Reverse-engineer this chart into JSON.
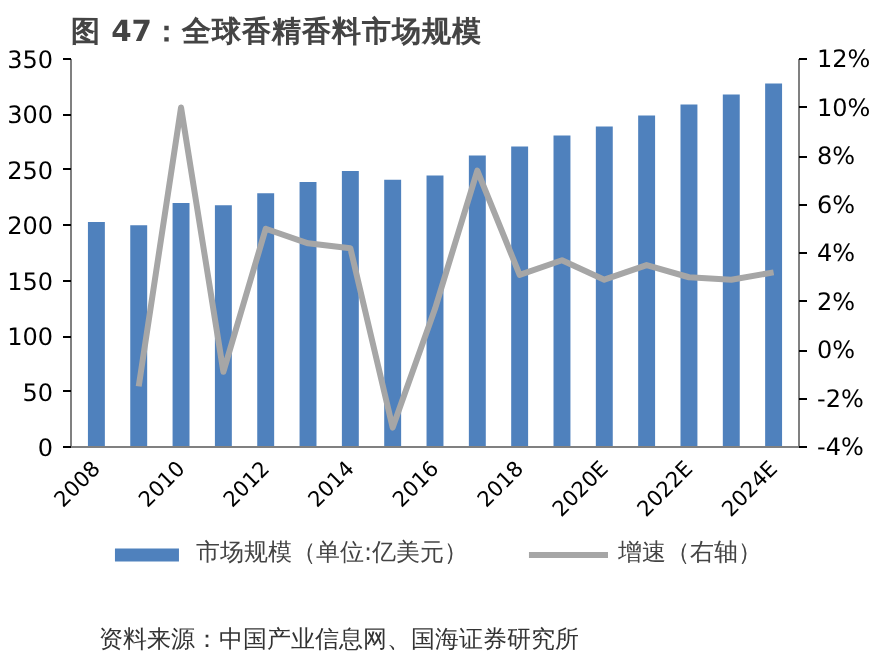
{
  "chart_data": {
    "type": "bar",
    "title": "图 47：全球香精香料市场规模",
    "categories": [
      "2008",
      null,
      "2010",
      null,
      "2012",
      null,
      "2014",
      null,
      "2016",
      null,
      "2018",
      null,
      "2020E",
      null,
      "2022E",
      null,
      "2024E"
    ],
    "series": [
      {
        "name": "市场规模（单位:亿美元）",
        "color": "#4f81bd",
        "values": [
          203,
          200,
          220,
          218,
          229,
          239,
          249,
          241,
          245,
          263,
          271,
          281,
          289,
          299,
          309,
          318,
          328
        ]
      },
      {
        "name": "增速（右轴）",
        "type": "line",
        "axis": "y2",
        "color": "#a6a6a6",
        "values": [
          null,
          -1.5,
          10.0,
          -0.9,
          5.0,
          4.4,
          4.2,
          -3.2,
          1.7,
          7.4,
          3.1,
          3.7,
          2.9,
          3.5,
          3.0,
          2.9,
          3.2
        ]
      }
    ],
    "ylim": [
      0,
      350
    ],
    "yticks": [
      0,
      50,
      100,
      150,
      200,
      250,
      300,
      350
    ],
    "y2lim": [
      -4,
      12
    ],
    "y2ticks": [
      {
        "value": -4,
        "label": "-4%"
      },
      {
        "value": -2,
        "label": "-2%"
      },
      {
        "value": 0,
        "label": "0%"
      },
      {
        "value": 2,
        "label": "2%"
      },
      {
        "value": 4,
        "label": "4%"
      },
      {
        "value": 6,
        "label": "6%"
      },
      {
        "value": 8,
        "label": "8%"
      },
      {
        "value": 10,
        "label": "10%"
      },
      {
        "value": 12,
        "label": "12%"
      }
    ],
    "grid": false,
    "legend": "bottom",
    "marker": "none",
    "line_style": "solid",
    "annotations": [
      "资料来源：中国产业信息网、国海证券研究所"
    ]
  }
}
